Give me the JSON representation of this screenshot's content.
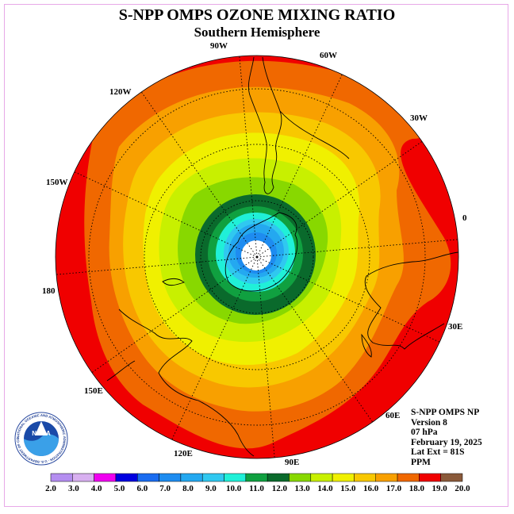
{
  "title": "S-NPP OMPS OZONE MIXING RATIO",
  "subtitle": "Southern Hemisphere",
  "lon_labels": [
    "90W",
    "60W",
    "30W",
    "0",
    "30E",
    "60E",
    "90E",
    "120E",
    "150E",
    "180",
    "150W",
    "120W"
  ],
  "info": {
    "instrument": "S-NPP OMPS NP",
    "version": "Version 8",
    "pressure": "07 hPa",
    "date": "February 19, 2025",
    "lat_ext": "Lat Ext = 81S",
    "units": "PPM"
  },
  "logo": {
    "text": "NOAA",
    "ring_text": "NATIONAL OCEANIC AND ATMOSPHERIC ADMINISTRATION · U.S. DEPARTMENT OF COMMERCE"
  },
  "colorbar": {
    "tick_labels": [
      "2.0",
      "3.0",
      "4.0",
      "5.0",
      "6.0",
      "7.0",
      "8.0",
      "9.0",
      "10.0",
      "11.0",
      "12.0",
      "13.0",
      "14.0",
      "15.0",
      "16.0",
      "17.0",
      "18.0",
      "19.0",
      "20.0"
    ],
    "colors": [
      "#b48ef0",
      "#d8b0f0",
      "#f000f0",
      "#0000e0",
      "#1a6cf0",
      "#1e8cf0",
      "#24a8f0",
      "#30c8f0",
      "#20f0d8",
      "#10a040",
      "#0a6a2c",
      "#88d800",
      "#c8f000",
      "#f0f000",
      "#f8c800",
      "#f8a000",
      "#f06800",
      "#f00000",
      "#8a5a3a"
    ]
  },
  "map_colors": {
    "ring_bands": [
      "#f00000",
      "#f03a00",
      "#f06800",
      "#f8a000",
      "#f8c800",
      "#f0f000",
      "#c8f000",
      "#88d800",
      "#0a6a2c",
      "#10a040",
      "#20f0d8",
      "#30c8f0",
      "#24a8f0",
      "#1e8cf0",
      "#ffffff"
    ]
  }
}
